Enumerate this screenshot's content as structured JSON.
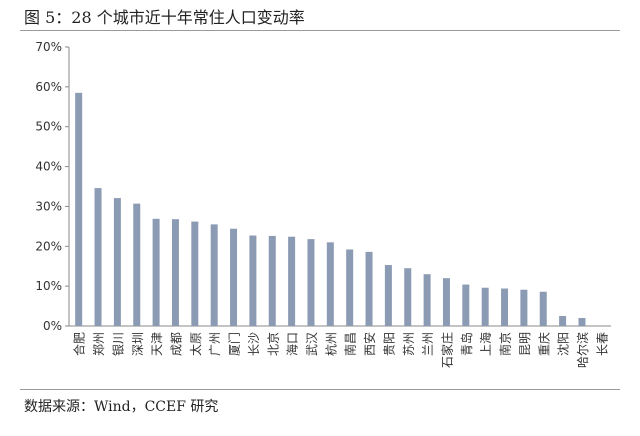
{
  "figure": {
    "title": "图 5：28 个城市近十年常住人口变动率",
    "source": "数据来源：Wind，CCEF 研究"
  },
  "chart_data": {
    "type": "bar",
    "title": "",
    "xlabel": "",
    "ylabel": "",
    "ylim": [
      0,
      70
    ],
    "y_ticks": [
      "0%",
      "10%",
      "20%",
      "30%",
      "40%",
      "50%",
      "60%",
      "70%"
    ],
    "grid": false,
    "bar_color": "#8c9bb4",
    "categories": [
      "合肥",
      "郑州",
      "银川",
      "深圳",
      "天津",
      "成都",
      "太原",
      "广州",
      "厦门",
      "长沙",
      "北京",
      "海口",
      "武汉",
      "杭州",
      "南昌",
      "西安",
      "贵阳",
      "苏州",
      "兰州",
      "石家庄",
      "青岛",
      "上海",
      "南京",
      "昆明",
      "重庆",
      "沈阳",
      "哈尔滨",
      "长春"
    ],
    "values": [
      58.5,
      34.6,
      32.1,
      30.7,
      26.9,
      26.8,
      26.2,
      25.5,
      24.4,
      22.7,
      22.6,
      22.4,
      21.8,
      21.0,
      19.2,
      18.6,
      15.3,
      14.5,
      13.0,
      12.0,
      10.4,
      9.6,
      9.4,
      9.1,
      8.6,
      2.5,
      2.0,
      0.0
    ]
  }
}
